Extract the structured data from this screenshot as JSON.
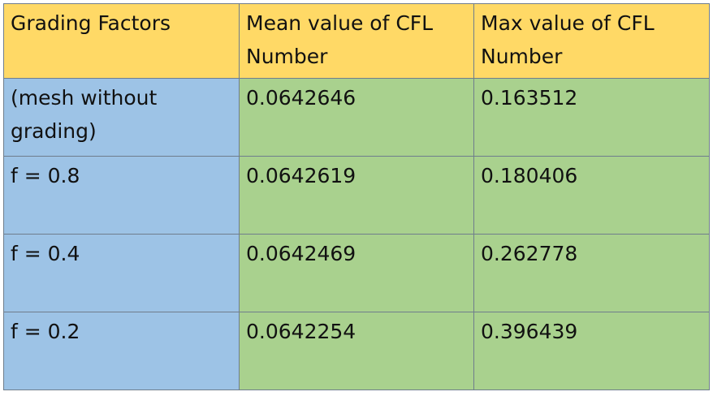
{
  "table": {
    "headers": [
      "Grading Factors",
      "Mean value of CFL Number",
      "Max value of CFL Number"
    ],
    "rows": [
      [
        "(mesh without grading)",
        "0.0642646",
        "0.163512"
      ],
      [
        "f = 0.8",
        "0.0642619",
        "0.180406"
      ],
      [
        "f = 0.4",
        "0.0642469",
        "0.262778"
      ],
      [
        "f = 0.2",
        "0.0642254",
        "0.396439"
      ]
    ]
  },
  "colors": {
    "header_bg": "#ffd966",
    "label_bg": "#9dc3e6",
    "value_bg": "#a9d18e",
    "border": "#6f7d8c"
  }
}
